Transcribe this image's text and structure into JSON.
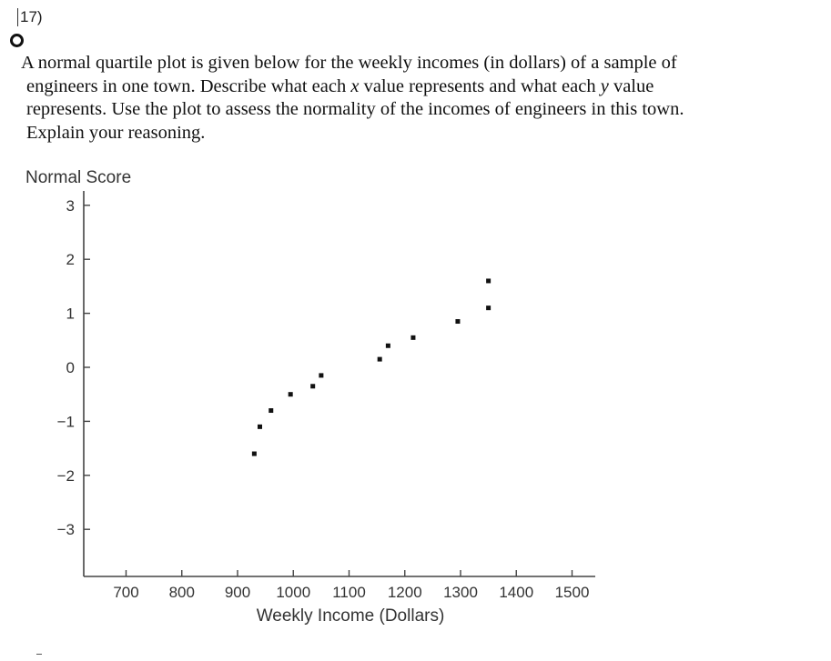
{
  "question": {
    "number": "17)",
    "lines": [
      "A normal quartile plot is given below for the weekly incomes (in dollars) of a sample of",
      "engineers in one town. Describe what each",
      "x",
      "value represents and what each",
      "y",
      "value",
      "represents. Use the plot to assess the normality of the incomes of engineers in this town.",
      "Explain your reasoning."
    ]
  },
  "chart_data": {
    "type": "scatter",
    "title": "",
    "ylabel": "Normal Score",
    "xlabel": "Weekly Income (Dollars)",
    "xlim": [
      650,
      1550
    ],
    "ylim": [
      -3.75,
      3.25
    ],
    "xticks": [
      700,
      800,
      900,
      1000,
      1100,
      1200,
      1300,
      1400,
      1500
    ],
    "xtick_labels": [
      "700",
      "800",
      "900",
      "1000",
      "1100",
      "1200",
      "1300",
      "1400",
      "1500"
    ],
    "yticks": [
      3,
      2,
      1,
      0,
      -1,
      -2,
      -3
    ],
    "ytick_labels": [
      "3",
      "2",
      "1",
      "0",
      "−1",
      "−2",
      "−3"
    ],
    "grid": false,
    "points": [
      {
        "x": 930,
        "y": -1.6
      },
      {
        "x": 940,
        "y": -1.1
      },
      {
        "x": 960,
        "y": -0.8
      },
      {
        "x": 995,
        "y": -0.5
      },
      {
        "x": 1035,
        "y": -0.35
      },
      {
        "x": 1050,
        "y": -0.15
      },
      {
        "x": 1155,
        "y": 0.15
      },
      {
        "x": 1170,
        "y": 0.4
      },
      {
        "x": 1215,
        "y": 0.55
      },
      {
        "x": 1295,
        "y": 0.85
      },
      {
        "x": 1350,
        "y": 1.1
      },
      {
        "x": 1350,
        "y": 1.6
      }
    ]
  }
}
